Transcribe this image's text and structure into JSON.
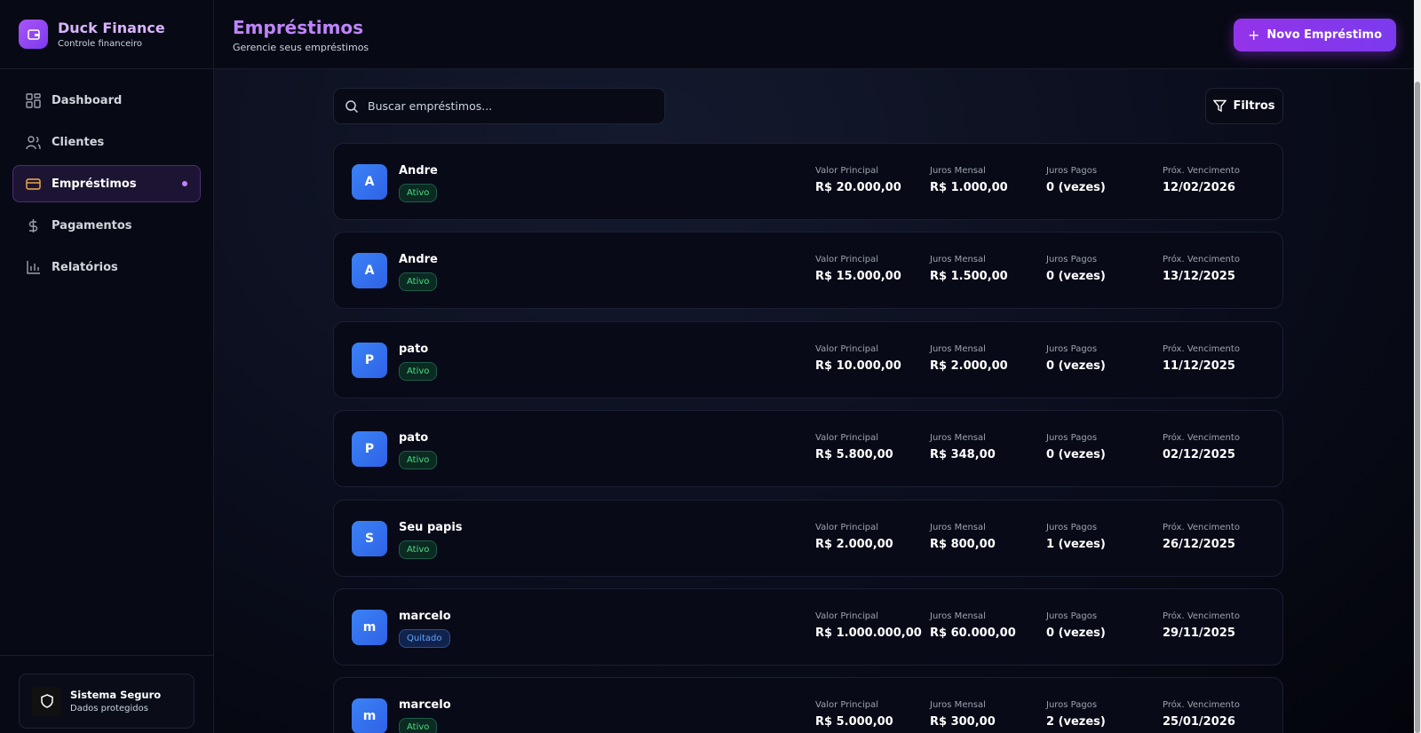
{
  "sidebar": {
    "brand": {
      "title": "Duck Finance",
      "subtitle": "Controle financeiro"
    },
    "nav": [
      "Dashboard",
      "Clientes",
      "Empréstimos",
      "Pagamentos",
      "Relatórios"
    ],
    "footer": {
      "title": "Sistema Seguro",
      "subtitle": "Dados protegidos"
    }
  },
  "header": {
    "title": "Empréstimos",
    "subtitle": "Gerencie seus empréstimos",
    "button": "Novo Empréstimo"
  },
  "toolbar": {
    "search_placeholder": "Buscar empréstimos...",
    "filter_button": "Filtros"
  },
  "loans": {
    "column_labels": [
      "Valor Principal",
      "Juros Mensal",
      "Juros Pagos",
      "Próx. Vencimento"
    ],
    "items": [
      {
        "avatar": "A",
        "name": "Andre",
        "status": "Ativo",
        "values": [
          "R$ 20.000,00",
          "R$ 1.000,00",
          "0 (vezes)",
          "12/02/2026"
        ]
      },
      {
        "avatar": "A",
        "name": "Andre",
        "status": "Ativo",
        "values": [
          "R$ 15.000,00",
          "R$ 1.500,00",
          "0 (vezes)",
          "13/12/2025"
        ]
      },
      {
        "avatar": "P",
        "name": "pato",
        "status": "Ativo",
        "values": [
          "R$ 10.000,00",
          "R$ 2.000,00",
          "0 (vezes)",
          "11/12/2025"
        ]
      },
      {
        "avatar": "P",
        "name": "pato",
        "status": "Ativo",
        "values": [
          "R$ 5.800,00",
          "R$ 348,00",
          "0 (vezes)",
          "02/12/2025"
        ]
      },
      {
        "avatar": "S",
        "name": "Seu papis",
        "status": "Ativo",
        "values": [
          "R$ 2.000,00",
          "R$ 800,00",
          "1 (vezes)",
          "26/12/2025"
        ]
      },
      {
        "avatar": "m",
        "name": "marcelo",
        "status": "Quitado",
        "values": [
          "R$ 1.000.000,00",
          "R$ 60.000,00",
          "0 (vezes)",
          "29/11/2025"
        ]
      },
      {
        "avatar": "m",
        "name": "marcelo",
        "status": "Ativo",
        "values": [
          "R$ 5.000,00",
          "R$ 300,00",
          "2 (vezes)",
          "25/01/2026"
        ]
      }
    ]
  }
}
